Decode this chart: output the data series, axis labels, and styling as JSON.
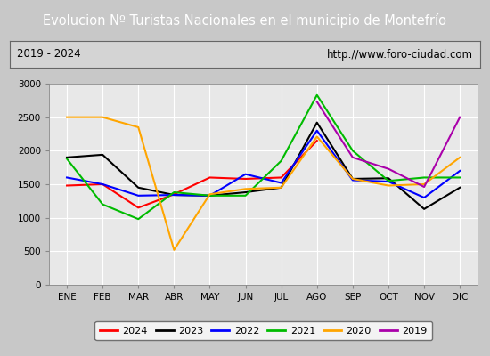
{
  "title": "Evolucion Nº Turistas Nacionales en el municipio de Montefrío",
  "subtitle_left": "2019 - 2024",
  "subtitle_right": "http://www.foro-ciudad.com",
  "months": [
    "ENE",
    "FEB",
    "MAR",
    "ABR",
    "MAY",
    "JUN",
    "JUL",
    "AGO",
    "SEP",
    "OCT",
    "NOV",
    "DIC"
  ],
  "ylim": [
    0,
    3000
  ],
  "yticks": [
    0,
    500,
    1000,
    1500,
    2000,
    2500,
    3000
  ],
  "series": {
    "2024": {
      "color": "#ff0000",
      "data": [
        1480,
        1500,
        1150,
        1350,
        1600,
        1580,
        1600,
        2150,
        null,
        null,
        null,
        null
      ]
    },
    "2023": {
      "color": "#000000",
      "data": [
        1900,
        1940,
        1450,
        1340,
        1330,
        1380,
        1450,
        2420,
        1580,
        1590,
        1130,
        1450
      ]
    },
    "2022": {
      "color": "#0000ff",
      "data": [
        1600,
        1500,
        1330,
        1340,
        1330,
        1650,
        1520,
        2300,
        1560,
        1540,
        1300,
        1700
      ]
    },
    "2021": {
      "color": "#00bb00",
      "data": [
        1880,
        1200,
        980,
        1380,
        1330,
        1330,
        1850,
        2830,
        2000,
        1550,
        1600,
        1600
      ]
    },
    "2020": {
      "color": "#ffa500",
      "data": [
        2500,
        2500,
        2350,
        520,
        1350,
        1430,
        1450,
        2210,
        1580,
        1480,
        1500,
        1900
      ]
    },
    "2019": {
      "color": "#aa00aa",
      "data": [
        null,
        null,
        null,
        null,
        null,
        null,
        null,
        2730,
        1900,
        1730,
        1460,
        2500
      ]
    }
  },
  "title_bg_color": "#4f81bd",
  "title_text_color": "#ffffff",
  "plot_bg_color": "#e8e8e8",
  "fig_bg_color": "#c8c8c8",
  "subtitle_bg_color": "#d4d4d4",
  "grid_color": "#ffffff",
  "legend_order": [
    "2024",
    "2023",
    "2022",
    "2021",
    "2020",
    "2019"
  ]
}
